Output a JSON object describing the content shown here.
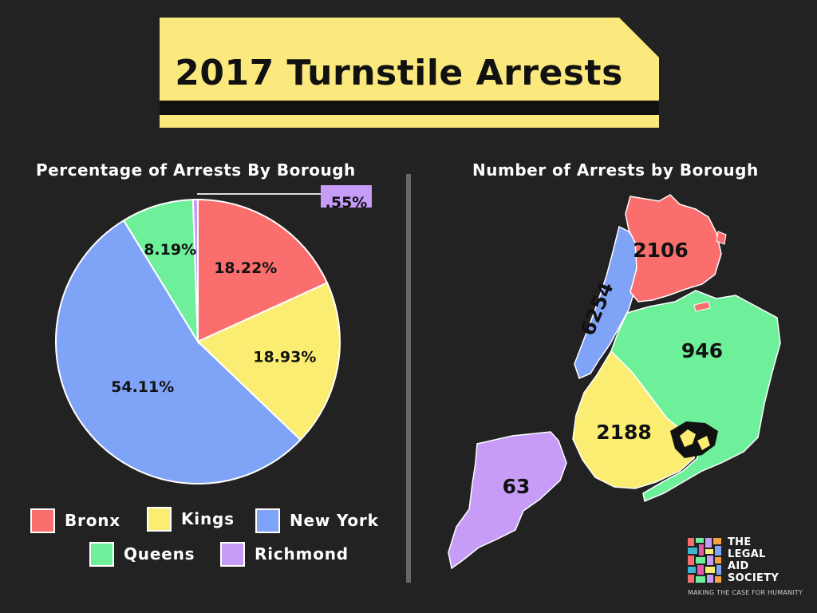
{
  "title": "2017 Turnstile Arrests",
  "colors": {
    "background": "#222222",
    "title_banner": "#fbe97d",
    "Bronx": "#fb6e6e",
    "Kings": "#fbed72",
    "New York": "#7fa4f7",
    "Queens": "#6ef09a",
    "Richmond": "#c79cf7"
  },
  "pie": {
    "subtitle": "Percentage of Arrests By Borough"
  },
  "map": {
    "subtitle": "Number of Arrests by Borough"
  },
  "legend": [
    {
      "label": "Bronx",
      "color": "#fb6e6e"
    },
    {
      "label": "Kings",
      "color": "#fbed72"
    },
    {
      "label": "New York",
      "color": "#7fa4f7"
    },
    {
      "label": "Queens",
      "color": "#6ef09a"
    },
    {
      "label": "Richmond",
      "color": "#c79cf7"
    }
  ],
  "chart_data": [
    {
      "type": "pie",
      "title": "Percentage of Arrests By Borough",
      "categories": [
        "Bronx",
        "Kings",
        "New York",
        "Queens",
        "Richmond"
      ],
      "values": [
        18.22,
        18.93,
        54.11,
        8.19,
        0.55
      ],
      "value_labels": [
        "18.22%",
        "18.93%",
        "54.11%",
        "8.19%",
        ".55%"
      ],
      "legend_position": "bottom"
    },
    {
      "type": "map",
      "title": "Number of Arrests by Borough",
      "categories": [
        "Bronx",
        "New York",
        "Queens",
        "Kings",
        "Richmond"
      ],
      "values": [
        2106,
        6254,
        946,
        2188,
        63
      ],
      "value_labels": [
        "2106",
        "6254",
        "946",
        "2188",
        "63"
      ]
    }
  ],
  "logo": {
    "name": "THE\nLEGAL\nAID\nSOCIETY",
    "tagline": "MAKING THE CASE FOR HUMANITY",
    "colors": [
      "#fb6e6e",
      "#f7a23e",
      "#fbed72",
      "#6ef09a",
      "#3fb5d6",
      "#7fa4f7",
      "#c79cf7",
      "#e45aa9"
    ]
  }
}
